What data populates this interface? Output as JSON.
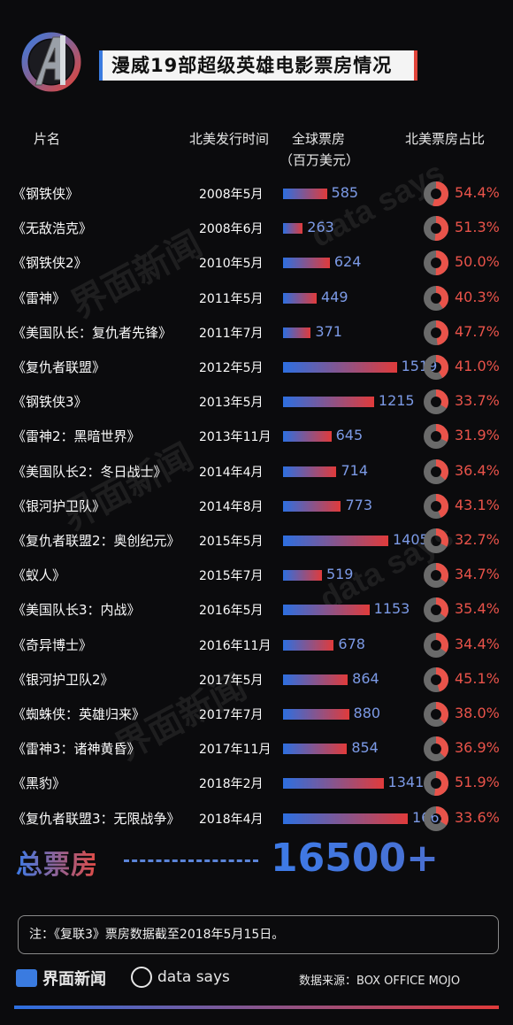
{
  "title": "漫威19部超级英雄电影票房情况",
  "headers": {
    "name": "片名",
    "date": "北美发行时间",
    "gross": "全球票房",
    "gross_unit": "（百万美元）",
    "share": "北美票房占比"
  },
  "chart_data": {
    "type": "bar",
    "categories": [
      "《钢铁侠》",
      "《无敌浩克》",
      "《钢铁侠2》",
      "《雷神》",
      "《美国队长：复仇者先锋》",
      "《复仇者联盟》",
      "《钢铁侠3》",
      "《雷神2：黑暗世界》",
      "《美国队长2：冬日战士》",
      "《银河护卫队》",
      "《复仇者联盟2：奥创纪元》",
      "《蚁人》",
      "《美国队长3：内战》",
      "《奇异博士》",
      "《银河护卫队2》",
      "《蜘蛛侠：英雄归来》",
      "《雷神3：诸神黄昏》",
      "《黑豹》",
      "《复仇者联盟3：无限战争》"
    ],
    "dates": [
      "2008年5月",
      "2008年6月",
      "2010年5月",
      "2011年5月",
      "2011年7月",
      "2012年5月",
      "2013年5月",
      "2013年11月",
      "2014年4月",
      "2014年8月",
      "2015年5月",
      "2015年7月",
      "2016年5月",
      "2016年11月",
      "2017年5月",
      "2017年7月",
      "2017年11月",
      "2018年2月",
      "2018年4月"
    ],
    "values": [
      585,
      263,
      624,
      449,
      371,
      1519,
      1215,
      645,
      714,
      773,
      1405,
      519,
      1153,
      678,
      864,
      880,
      854,
      1341,
      1665
    ],
    "na_share": [
      "54.4%",
      "51.3%",
      "50.0%",
      "40.3%",
      "47.7%",
      "41.0%",
      "33.7%",
      "31.9%",
      "36.4%",
      "43.1%",
      "32.7%",
      "34.7%",
      "35.4%",
      "34.4%",
      "45.1%",
      "38.0%",
      "36.9%",
      "51.9%",
      "33.6%"
    ],
    "na_share_values": [
      54.4,
      51.3,
      50.0,
      40.3,
      47.7,
      41.0,
      33.7,
      31.9,
      36.4,
      43.1,
      32.7,
      34.7,
      35.4,
      34.4,
      45.1,
      38.0,
      36.9,
      51.9,
      33.6
    ],
    "ylim": [
      0,
      1665
    ],
    "colors": {
      "bar_start": "#2d6fe0",
      "bar_end": "#e03b3b",
      "value": "#7c9ae6",
      "share": "#e9534a",
      "donut_track": "#6a6a6a"
    }
  },
  "total": {
    "label": "总票房",
    "value": "16500+"
  },
  "note": "注：《复联3》票房数据截至2018年5月15日。",
  "footer": {
    "brand1": "界面新闻",
    "brand2": "data says",
    "source": "数据来源：BOX OFFICE MOJO"
  },
  "watermarks": [
    "界面新闻",
    "data says"
  ]
}
